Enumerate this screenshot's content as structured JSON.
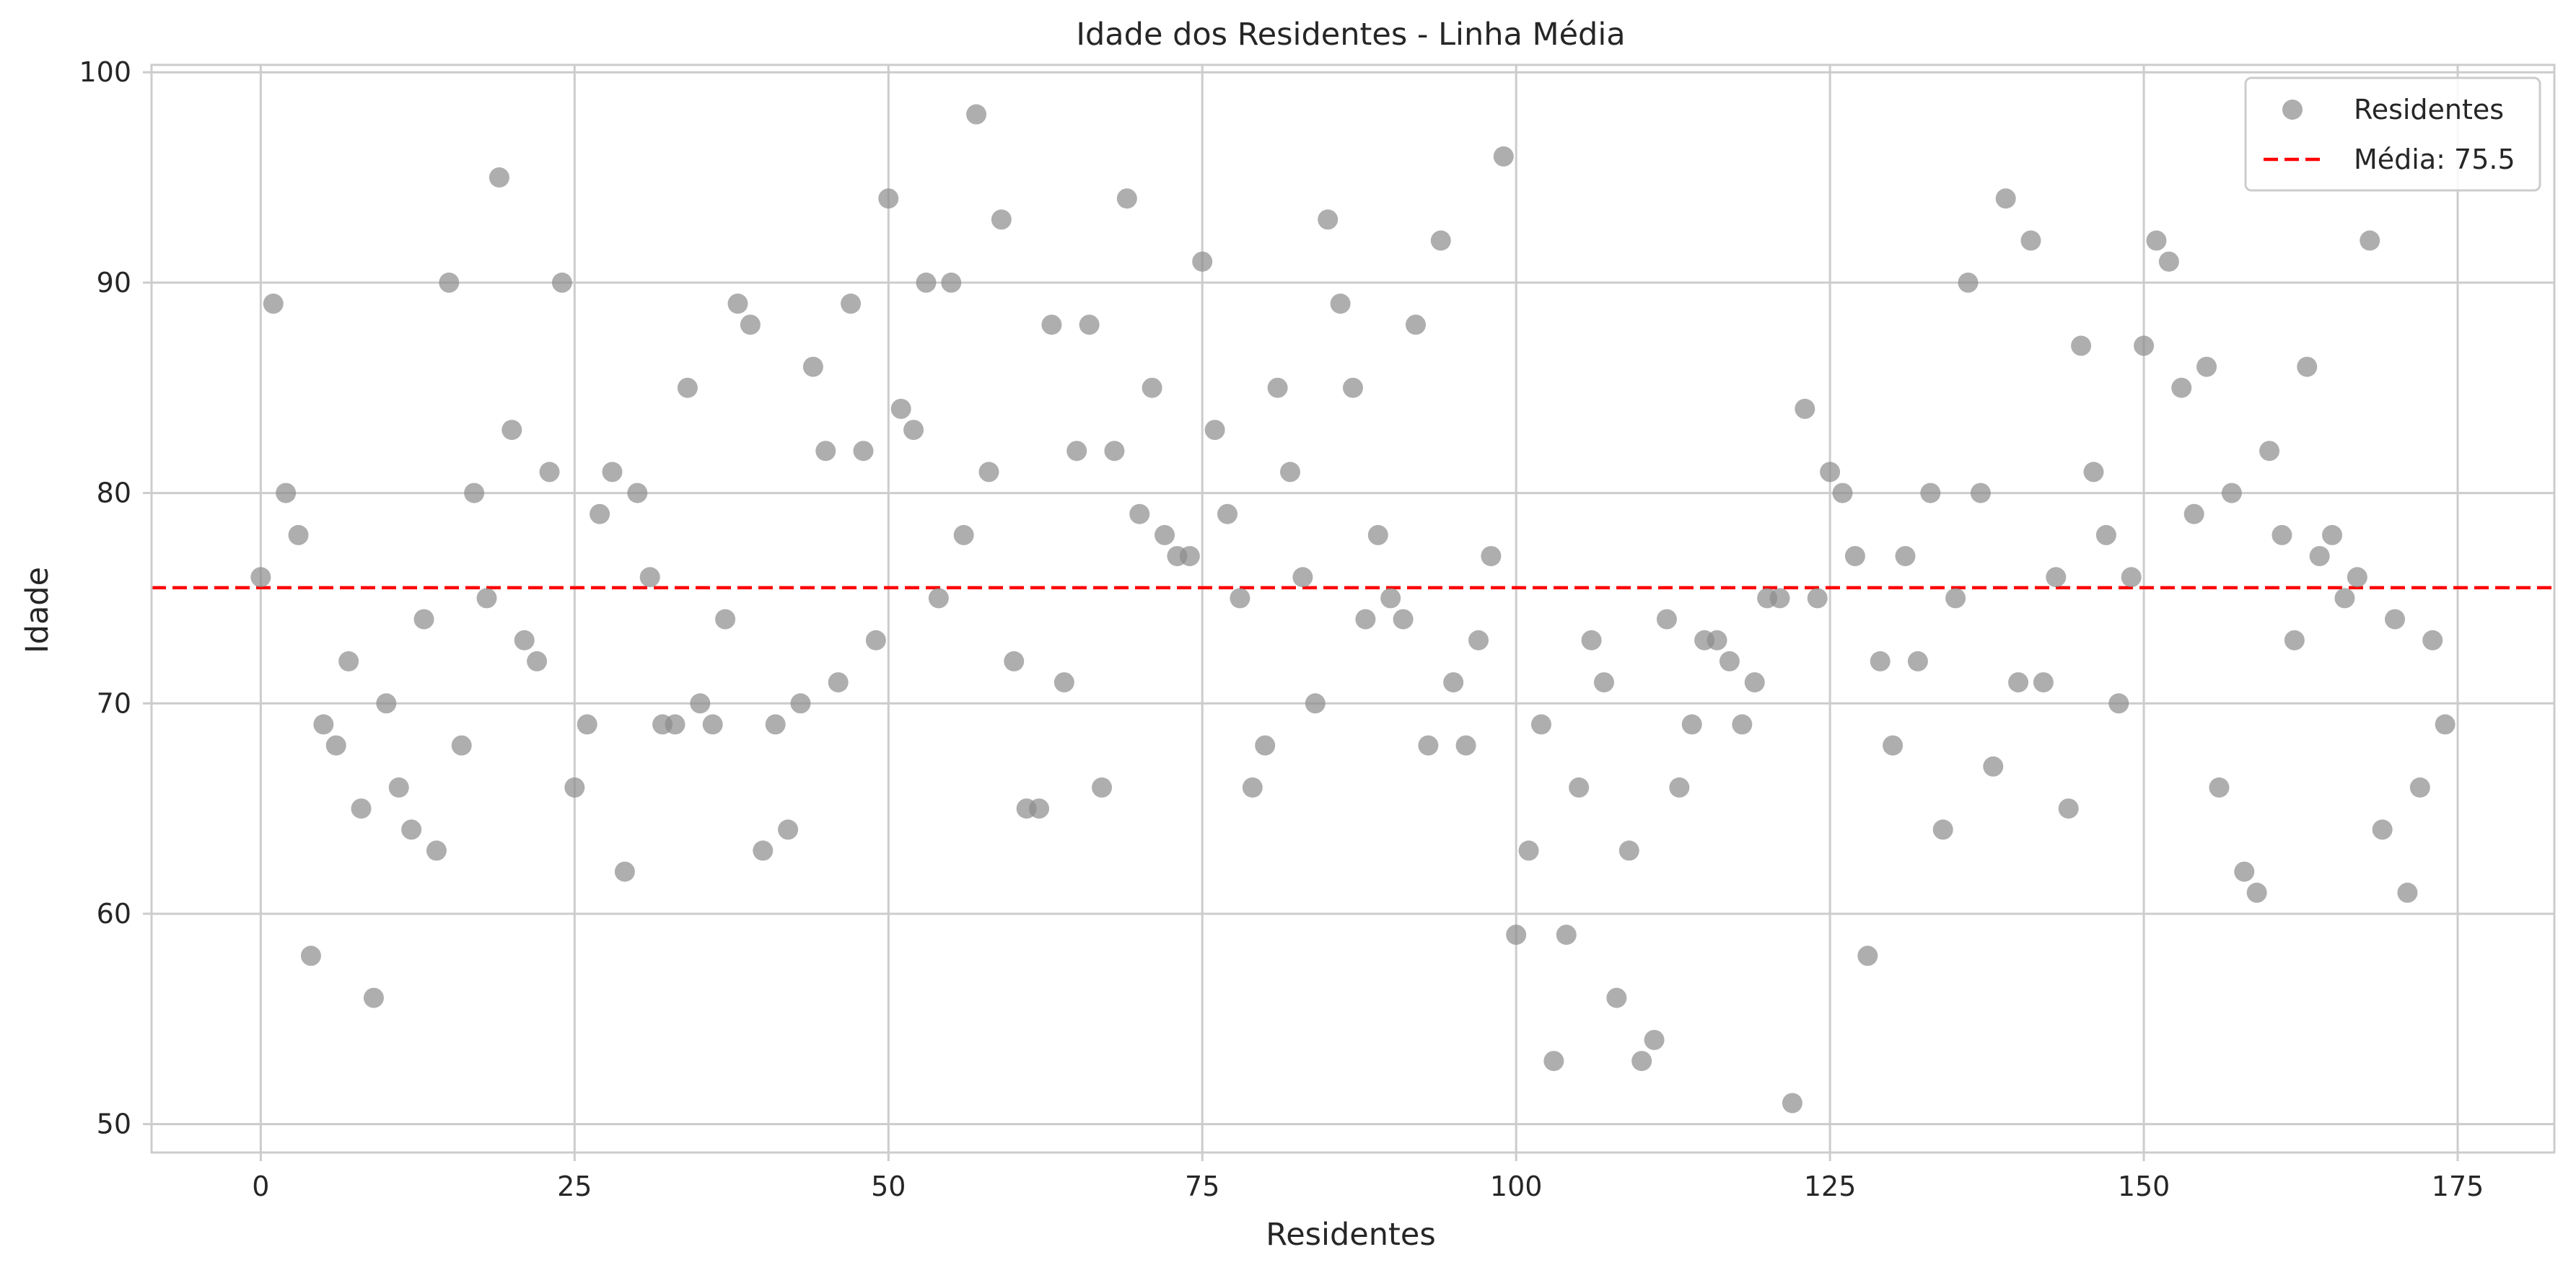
{
  "chart_data": {
    "type": "scatter",
    "title": "Idade dos Residentes - Linha Média",
    "xlabel": "Residentes",
    "ylabel": "Idade",
    "xlim": [
      -8.7,
      182.7
    ],
    "ylim": [
      48.65,
      100.35
    ],
    "xticks": [
      "0",
      "25",
      "50",
      "75",
      "100",
      "125",
      "150",
      "175"
    ],
    "xtick_values": [
      0,
      25,
      50,
      75,
      100,
      125,
      150,
      175
    ],
    "yticks": [
      "50",
      "60",
      "70",
      "80",
      "90",
      "100"
    ],
    "ytick_values": [
      50,
      60,
      70,
      80,
      90,
      100
    ],
    "grid": true,
    "legend_position": "top-right",
    "colors": {
      "points": "#8c8c8c",
      "mean_line": "#ff0000",
      "grid": "#cccccc"
    },
    "series": [
      {
        "name": "Residentes",
        "kind": "scatter",
        "x": [
          0,
          1,
          2,
          3,
          4,
          5,
          6,
          7,
          8,
          9,
          10,
          11,
          12,
          13,
          14,
          15,
          16,
          17,
          18,
          19,
          20,
          21,
          22,
          23,
          24,
          25,
          26,
          27,
          28,
          29,
          30,
          31,
          32,
          33,
          34,
          35,
          36,
          37,
          38,
          39,
          40,
          41,
          42,
          43,
          44,
          45,
          46,
          47,
          48,
          49,
          50,
          51,
          52,
          53,
          54,
          55,
          56,
          57,
          58,
          59,
          60,
          61,
          62,
          63,
          64,
          65,
          66,
          67,
          68,
          69,
          70,
          71,
          72,
          73,
          74,
          75,
          76,
          77,
          78,
          79,
          80,
          81,
          82,
          83,
          84,
          85,
          86,
          87,
          88,
          89,
          90,
          91,
          92,
          93,
          94,
          95,
          96,
          97,
          98,
          99,
          100,
          101,
          102,
          103,
          104,
          105,
          106,
          107,
          108,
          109,
          110,
          111,
          112,
          113,
          114,
          115,
          116,
          117,
          118,
          119,
          120,
          121,
          122,
          123,
          124,
          125,
          126,
          127,
          128,
          129,
          130,
          131,
          132,
          133,
          134,
          135,
          136,
          137,
          138,
          139,
          140,
          141,
          142,
          143,
          144,
          145,
          146,
          147,
          148,
          149,
          150,
          151,
          152,
          153,
          154,
          155,
          156,
          157,
          158,
          159,
          160,
          161,
          162,
          163,
          164,
          165,
          166,
          167,
          168,
          169,
          170,
          171,
          172,
          173,
          174
        ],
        "y": [
          76,
          89,
          80,
          78,
          58,
          69,
          68,
          72,
          65,
          56,
          70,
          66,
          64,
          74,
          63,
          90,
          68,
          80,
          75,
          95,
          83,
          73,
          72,
          81,
          90,
          66,
          69,
          79,
          81,
          62,
          80,
          76,
          69,
          69,
          85,
          70,
          69,
          74,
          89,
          88,
          63,
          69,
          64,
          70,
          86,
          82,
          71,
          89,
          82,
          73,
          94,
          84,
          83,
          90,
          75,
          90,
          78,
          98,
          81,
          93,
          72,
          65,
          65,
          88,
          71,
          82,
          88,
          66,
          82,
          94,
          79,
          85,
          78,
          77,
          77,
          91,
          83,
          79,
          75,
          66,
          68,
          85,
          81,
          76,
          70,
          93,
          89,
          85,
          74,
          78,
          75,
          74,
          88,
          68,
          92,
          71,
          68,
          73,
          77,
          96,
          59,
          63,
          69,
          53,
          59,
          66,
          73,
          71,
          56,
          63,
          53,
          54,
          74,
          66,
          69,
          73,
          73,
          72,
          69,
          71,
          75,
          75,
          51,
          84,
          75,
          81,
          80,
          77,
          58,
          72,
          68,
          77,
          72,
          80,
          64,
          75,
          90,
          80,
          67,
          94,
          71,
          92,
          71,
          76,
          65,
          87,
          81,
          78,
          70,
          76,
          87,
          92,
          91,
          85,
          79,
          86,
          66,
          80,
          62,
          61,
          82,
          78,
          73,
          86,
          77,
          78,
          75,
          76,
          92,
          64,
          74,
          61,
          66,
          73,
          69
        ]
      },
      {
        "name": "Média: 75.5",
        "kind": "hline",
        "y": 75.5
      }
    ]
  }
}
